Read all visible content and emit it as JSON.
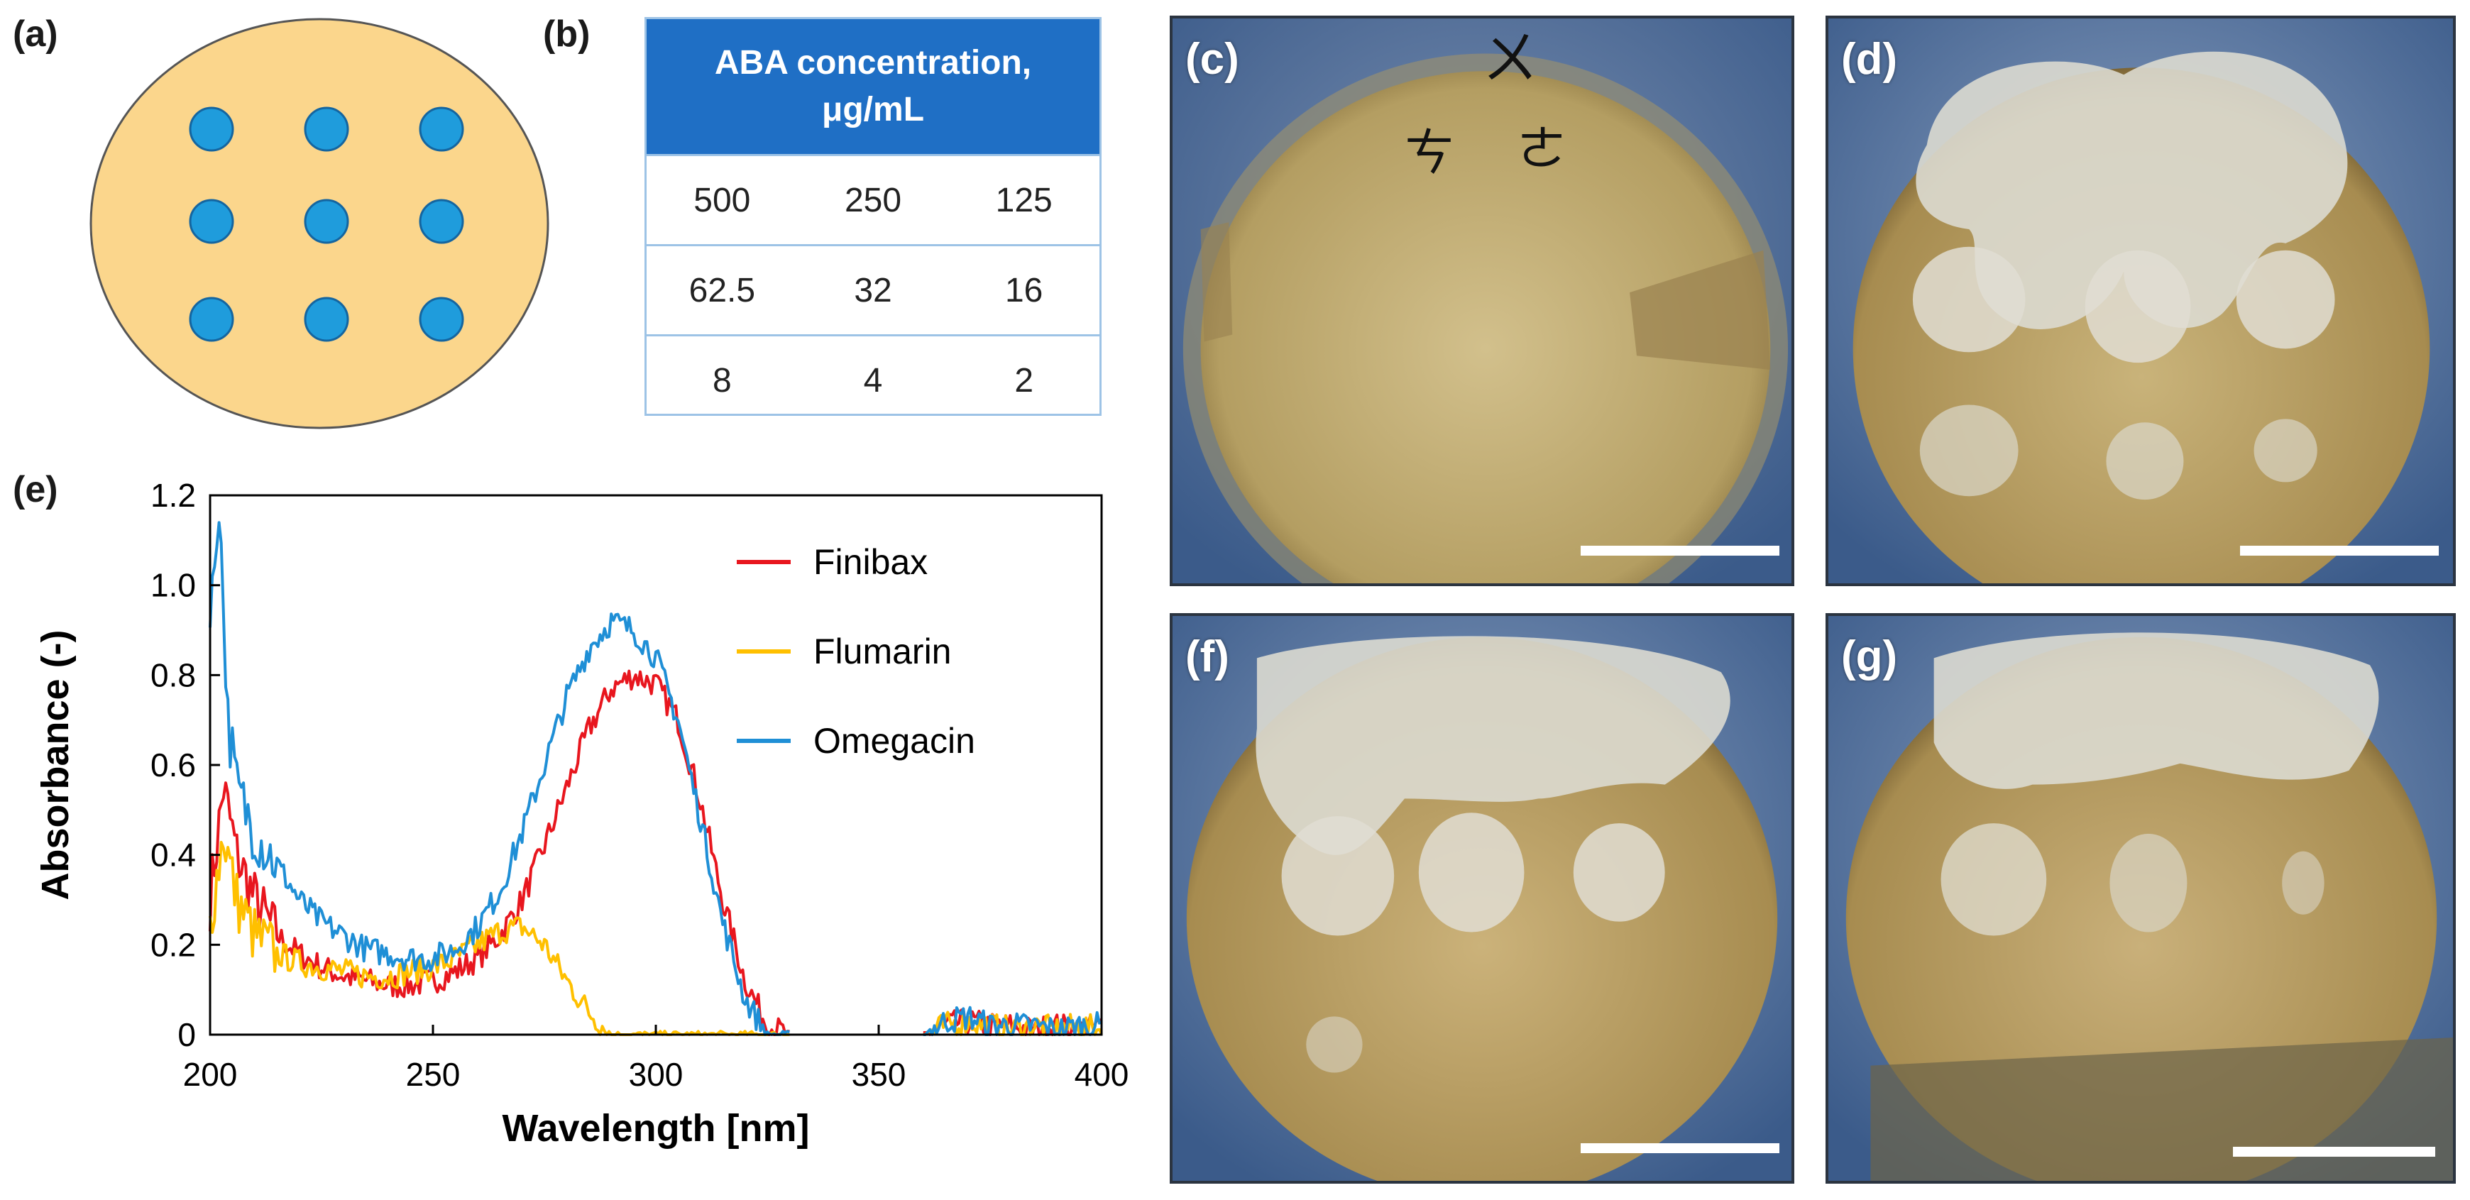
{
  "panel_labels": {
    "a": "(a)",
    "b": "(b)",
    "c": "(c)",
    "d": "(d)",
    "e": "(e)",
    "f": "(f)",
    "g": "(g)"
  },
  "plate_diagram": {
    "plate_color": "#fbd68c",
    "well_color": "#1f9cdc",
    "wells": 9
  },
  "table": {
    "header_line1": "ABA concentration,",
    "header_line2": "μg/mL",
    "rows": [
      [
        "500",
        "250",
        "125"
      ],
      [
        "62.5",
        "32",
        "16"
      ],
      [
        "8",
        "4",
        "2"
      ]
    ],
    "header_color": "#1f6fc5",
    "border_color": "#9dc3e6"
  },
  "photo_marking_glyphs": [
    "ㄨ",
    "ㄘ",
    "ㄜ"
  ],
  "chart_data": {
    "type": "line",
    "xlabel": "Wavelength [nm]",
    "ylabel": "Absorbance (-)",
    "xlim": [
      200,
      400
    ],
    "ylim": [
      0,
      1.2
    ],
    "xticks": [
      "200",
      "250",
      "300",
      "350",
      "400"
    ],
    "yticks": [
      "0",
      "0.2",
      "0.4",
      "0.6",
      "0.8",
      "1.0",
      "1.2"
    ],
    "grid": false,
    "legend_position": "top-right",
    "series": [
      {
        "name": "Finibax",
        "color": "#e8161e",
        "x": [
          200,
          203,
          206,
          210,
          215,
          220,
          225,
          230,
          235,
          240,
          245,
          250,
          255,
          260,
          265,
          270,
          275,
          280,
          285,
          290,
          295,
          300,
          305,
          310,
          315,
          320,
          325,
          330,
          360,
          365,
          370,
          375,
          380,
          385,
          390,
          395,
          400
        ],
        "y": [
          0.3,
          0.55,
          0.4,
          0.3,
          0.22,
          0.18,
          0.15,
          0.13,
          0.12,
          0.11,
          0.11,
          0.12,
          0.14,
          0.17,
          0.22,
          0.3,
          0.42,
          0.55,
          0.68,
          0.77,
          0.8,
          0.78,
          0.7,
          0.52,
          0.3,
          0.12,
          0.02,
          0.0,
          0.0,
          0.02,
          0.03,
          0.02,
          0.02,
          0.01,
          0.02,
          0.01,
          0.02
        ]
      },
      {
        "name": "Flumarin",
        "color": "#ffc000",
        "x": [
          200,
          203,
          206,
          210,
          215,
          220,
          225,
          230,
          235,
          240,
          245,
          250,
          255,
          260,
          265,
          270,
          275,
          280,
          285,
          290,
          295,
          300,
          305,
          310,
          315,
          320,
          325,
          330,
          360,
          365,
          370,
          375,
          380,
          385,
          390,
          395,
          400
        ],
        "y": [
          0.25,
          0.45,
          0.3,
          0.22,
          0.18,
          0.16,
          0.15,
          0.14,
          0.13,
          0.13,
          0.14,
          0.15,
          0.17,
          0.2,
          0.23,
          0.24,
          0.2,
          0.12,
          0.05,
          0.0,
          0.0,
          0.0,
          0.0,
          0.0,
          0.0,
          0.0,
          0.0,
          0.0,
          0.0,
          0.02,
          0.03,
          0.02,
          0.01,
          0.02,
          0.01,
          0.02,
          0.01
        ]
      },
      {
        "name": "Omegacin",
        "color": "#1f8fd6",
        "x": [
          200,
          202,
          204,
          206,
          210,
          215,
          220,
          225,
          230,
          235,
          240,
          245,
          250,
          255,
          260,
          265,
          270,
          275,
          280,
          285,
          290,
          295,
          300,
          305,
          310,
          315,
          320,
          325,
          330,
          360,
          365,
          370,
          375,
          380,
          385,
          390,
          395,
          400
        ],
        "y": [
          0.9,
          1.2,
          0.7,
          0.55,
          0.45,
          0.38,
          0.3,
          0.25,
          0.22,
          0.19,
          0.18,
          0.17,
          0.17,
          0.19,
          0.24,
          0.32,
          0.45,
          0.6,
          0.75,
          0.86,
          0.92,
          0.9,
          0.84,
          0.7,
          0.48,
          0.25,
          0.08,
          0.0,
          0.0,
          0.0,
          0.03,
          0.04,
          0.02,
          0.02,
          0.02,
          0.01,
          0.02,
          0.02
        ]
      }
    ]
  }
}
